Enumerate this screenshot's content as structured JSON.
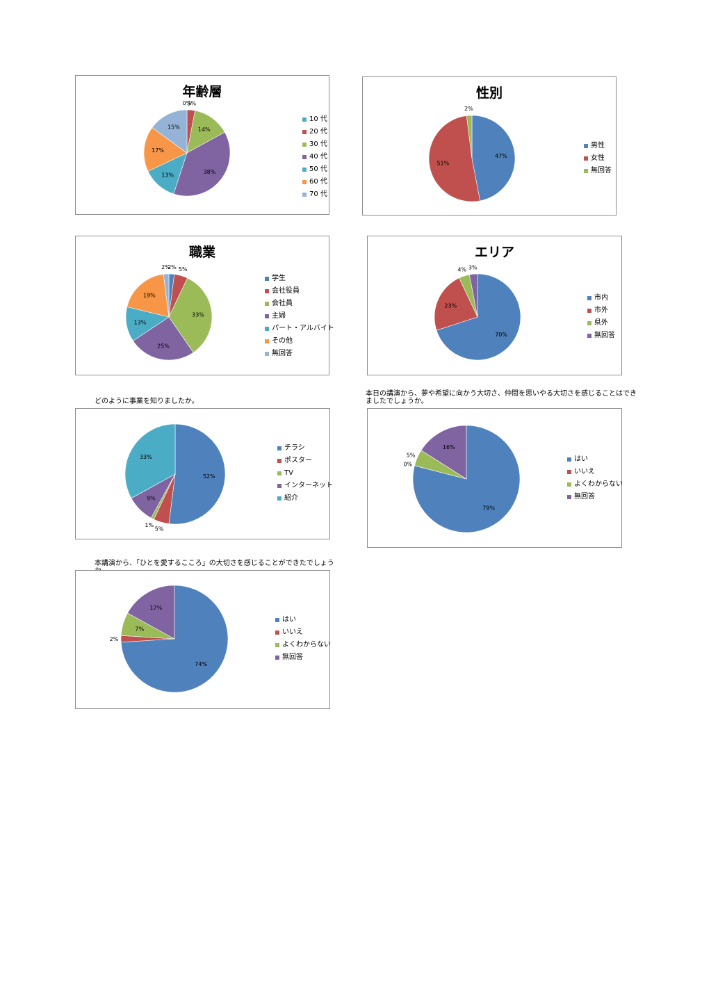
{
  "colors": {
    "blue": "#4F81BD",
    "red": "#C0504D",
    "green": "#9BBB59",
    "purple": "#8064A2",
    "teal": "#4BACC6",
    "orange": "#F79646",
    "lightblue": "#95B3D7"
  },
  "chart_data": [
    {
      "id": "age",
      "type": "pie",
      "title": "年齢層",
      "question": "",
      "categories": [
        "10 代",
        "20 代",
        "30 代",
        "40 代",
        "50 代",
        "60 代",
        "70 代"
      ],
      "values": [
        0,
        3,
        14,
        38,
        13,
        17,
        15
      ],
      "labels": [
        "0%",
        "3%",
        "14%",
        "38%",
        "13%",
        "17%",
        "15%"
      ],
      "colors": [
        "#4BACC6",
        "#C0504D",
        "#9BBB59",
        "#8064A2",
        "#4BACC6",
        "#F79646",
        "#95B3D7"
      ],
      "legend": "right"
    },
    {
      "id": "gender",
      "type": "pie",
      "title": "性別",
      "question": "",
      "categories": [
        "男性",
        "女性",
        "無回答"
      ],
      "values": [
        47,
        51,
        2
      ],
      "labels": [
        "47%",
        "51%",
        "2%"
      ],
      "colors": [
        "#4F81BD",
        "#C0504D",
        "#9BBB59"
      ],
      "legend": "right"
    },
    {
      "id": "occupation",
      "type": "pie",
      "title": "職業",
      "question": "",
      "categories": [
        "学生",
        "会社役員",
        "会社員",
        "主婦",
        "パート・アルバイト",
        "その他",
        "無回答"
      ],
      "values": [
        2,
        5,
        33,
        25,
        13,
        19,
        2
      ],
      "labels": [
        "2%",
        "5%",
        "33%",
        "25%",
        "13%",
        "19%",
        "2%"
      ],
      "colors": [
        "#4F81BD",
        "#C0504D",
        "#9BBB59",
        "#8064A2",
        "#4BACC6",
        "#F79646",
        "#95B3D7"
      ],
      "legend": "right"
    },
    {
      "id": "area",
      "type": "pie",
      "title": "エリア",
      "question": "",
      "categories": [
        "市内",
        "市外",
        "県外",
        "無回答"
      ],
      "values": [
        70,
        23,
        4,
        3
      ],
      "labels": [
        "70%",
        "23%",
        "4%",
        "3%"
      ],
      "colors": [
        "#4F81BD",
        "#C0504D",
        "#9BBB59",
        "#8064A2"
      ],
      "legend": "right"
    },
    {
      "id": "source",
      "type": "pie",
      "title": "",
      "question": "どのように事業を知りましたか。",
      "categories": [
        "チラシ",
        "ポスター",
        "TV",
        "インターネット",
        "紹介"
      ],
      "values": [
        52,
        5,
        1,
        9,
        33
      ],
      "labels": [
        "52%",
        "5%",
        "1%",
        "9%",
        "33%"
      ],
      "colors": [
        "#4F81BD",
        "#C0504D",
        "#9BBB59",
        "#8064A2",
        "#4BACC6"
      ],
      "legend": "right"
    },
    {
      "id": "dream",
      "type": "pie",
      "title": "",
      "question": "本日の講演から、夢や希望に向かう大切さ、仲間を思いやる大切さを感じることはできましたでしょうか。",
      "categories": [
        "はい",
        "いいえ",
        "よくわからない",
        "無回答"
      ],
      "values": [
        79,
        0,
        5,
        16
      ],
      "labels": [
        "79%",
        "0%",
        "5%",
        "16%"
      ],
      "colors": [
        "#4F81BD",
        "#C0504D",
        "#9BBB59",
        "#8064A2"
      ],
      "legend": "right"
    },
    {
      "id": "love",
      "type": "pie",
      "title": "",
      "question": "本講演から、「ひとを愛するこころ」の大切さを感じることができたでしょうか。",
      "categories": [
        "はい",
        "いいえ",
        "よくわからない",
        "無回答"
      ],
      "values": [
        74,
        2,
        7,
        17
      ],
      "labels": [
        "74%",
        "2%",
        "7%",
        "17%"
      ],
      "colors": [
        "#4F81BD",
        "#C0504D",
        "#9BBB59",
        "#8064A2"
      ],
      "legend": "right"
    }
  ]
}
